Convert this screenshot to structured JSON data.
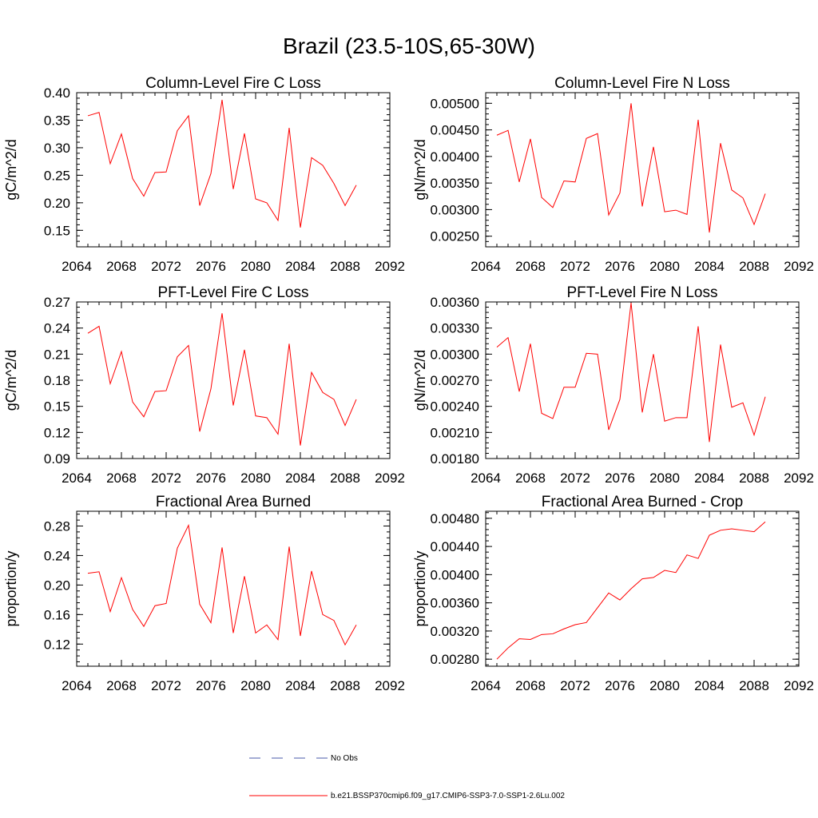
{
  "title": "Brazil (23.5-10S,65-30W)",
  "chart_data": [
    {
      "type": "line",
      "title": "Column-Level Fire C Loss",
      "ylabel": "gC/m^2/d",
      "xlim": [
        2064,
        2092
      ],
      "ylim": [
        0.12,
        0.4
      ],
      "xticks": [
        "2064",
        "2068",
        "2072",
        "2076",
        "2080",
        "2084",
        "2088",
        "2092"
      ],
      "yticks": [
        "0.15",
        "0.20",
        "0.25",
        "0.30",
        "0.35",
        "0.40"
      ],
      "ytick_values": [
        0.15,
        0.2,
        0.25,
        0.3,
        0.35,
        0.4
      ],
      "x": [
        2065,
        2066,
        2067,
        2068,
        2069,
        2070,
        2071,
        2072,
        2073,
        2074,
        2075,
        2076,
        2077,
        2078,
        2079,
        2080,
        2081,
        2082,
        2083,
        2084,
        2085,
        2086,
        2087,
        2088,
        2089
      ],
      "series": [
        {
          "values": [
            0.358,
            0.364,
            0.271,
            0.325,
            0.244,
            0.212,
            0.255,
            0.256,
            0.331,
            0.358,
            0.195,
            0.253,
            0.387,
            0.225,
            0.326,
            0.207,
            0.2,
            0.168,
            0.336,
            0.155,
            0.282,
            0.268,
            0.235,
            0.195,
            0.232
          ]
        }
      ]
    },
    {
      "type": "line",
      "title": "Column-Level Fire N Loss",
      "ylabel": "gN/m^2/d",
      "xlim": [
        2064,
        2092
      ],
      "ylim": [
        0.0023,
        0.0052
      ],
      "xticks": [
        "2064",
        "2068",
        "2072",
        "2076",
        "2080",
        "2084",
        "2088",
        "2092"
      ],
      "yticks": [
        "0.00250",
        "0.00300",
        "0.00350",
        "0.00400",
        "0.00450",
        "0.00500"
      ],
      "ytick_values": [
        0.0025,
        0.003,
        0.0035,
        0.004,
        0.0045,
        0.005
      ],
      "x": [
        2065,
        2066,
        2067,
        2068,
        2069,
        2070,
        2071,
        2072,
        2073,
        2074,
        2075,
        2076,
        2077,
        2078,
        2079,
        2080,
        2081,
        2082,
        2083,
        2084,
        2085,
        2086,
        2087,
        2088,
        2089
      ],
      "series": [
        {
          "values": [
            0.0044,
            0.00449,
            0.00352,
            0.00433,
            0.00323,
            0.00304,
            0.00354,
            0.00352,
            0.00434,
            0.00443,
            0.0029,
            0.00331,
            0.005,
            0.00306,
            0.00418,
            0.00296,
            0.00299,
            0.00291,
            0.00469,
            0.00257,
            0.00425,
            0.00337,
            0.00322,
            0.00272,
            0.0033
          ]
        }
      ]
    },
    {
      "type": "line",
      "title": "PFT-Level Fire C Loss",
      "ylabel": "gC/m^2/d",
      "xlim": [
        2064,
        2092
      ],
      "ylim": [
        0.09,
        0.27
      ],
      "xticks": [
        "2064",
        "2068",
        "2072",
        "2076",
        "2080",
        "2084",
        "2088",
        "2092"
      ],
      "yticks": [
        "0.09",
        "0.12",
        "0.15",
        "0.18",
        "0.21",
        "0.24",
        "0.27"
      ],
      "ytick_values": [
        0.09,
        0.12,
        0.15,
        0.18,
        0.21,
        0.24,
        0.27
      ],
      "x": [
        2065,
        2066,
        2067,
        2068,
        2069,
        2070,
        2071,
        2072,
        2073,
        2074,
        2075,
        2076,
        2077,
        2078,
        2079,
        2080,
        2081,
        2082,
        2083,
        2084,
        2085,
        2086,
        2087,
        2088,
        2089
      ],
      "series": [
        {
          "values": [
            0.234,
            0.242,
            0.176,
            0.213,
            0.155,
            0.138,
            0.167,
            0.168,
            0.207,
            0.22,
            0.121,
            0.17,
            0.257,
            0.151,
            0.215,
            0.139,
            0.137,
            0.118,
            0.222,
            0.105,
            0.189,
            0.166,
            0.158,
            0.128,
            0.158
          ]
        }
      ]
    },
    {
      "type": "line",
      "title": "PFT-Level Fire N Loss",
      "ylabel": "gN/m^2/d",
      "xlim": [
        2064,
        2092
      ],
      "ylim": [
        0.0018,
        0.0036
      ],
      "xticks": [
        "2064",
        "2068",
        "2072",
        "2076",
        "2080",
        "2084",
        "2088",
        "2092"
      ],
      "yticks": [
        "0.00180",
        "0.00210",
        "0.00240",
        "0.00270",
        "0.00300",
        "0.00330",
        "0.00360"
      ],
      "ytick_values": [
        0.0018,
        0.0021,
        0.0024,
        0.0027,
        0.003,
        0.0033,
        0.0036
      ],
      "x": [
        2065,
        2066,
        2067,
        2068,
        2069,
        2070,
        2071,
        2072,
        2073,
        2074,
        2075,
        2076,
        2077,
        2078,
        2079,
        2080,
        2081,
        2082,
        2083,
        2084,
        2085,
        2086,
        2087,
        2088,
        2089
      ],
      "series": [
        {
          "values": [
            0.00308,
            0.00319,
            0.00257,
            0.00312,
            0.00232,
            0.00226,
            0.00262,
            0.00262,
            0.00301,
            0.003,
            0.00213,
            0.00248,
            0.00359,
            0.00233,
            0.003,
            0.00223,
            0.00227,
            0.00227,
            0.00332,
            0.00199,
            0.00311,
            0.00239,
            0.00244,
            0.00207,
            0.00251
          ]
        }
      ]
    },
    {
      "type": "line",
      "title": "Fractional Area Burned",
      "ylabel": "proportion/y",
      "xlim": [
        2064,
        2092
      ],
      "ylim": [
        0.09,
        0.3
      ],
      "xticks": [
        "2064",
        "2068",
        "2072",
        "2076",
        "2080",
        "2084",
        "2088",
        "2092"
      ],
      "yticks": [
        "0.12",
        "0.16",
        "0.20",
        "0.24",
        "0.28"
      ],
      "ytick_values": [
        0.12,
        0.16,
        0.2,
        0.24,
        0.28
      ],
      "x": [
        2065,
        2066,
        2067,
        2068,
        2069,
        2070,
        2071,
        2072,
        2073,
        2074,
        2075,
        2076,
        2077,
        2078,
        2079,
        2080,
        2081,
        2082,
        2083,
        2084,
        2085,
        2086,
        2087,
        2088,
        2089
      ],
      "series": [
        {
          "values": [
            0.216,
            0.218,
            0.164,
            0.21,
            0.167,
            0.144,
            0.172,
            0.175,
            0.25,
            0.281,
            0.174,
            0.149,
            0.251,
            0.135,
            0.212,
            0.135,
            0.146,
            0.126,
            0.252,
            0.131,
            0.219,
            0.16,
            0.152,
            0.119,
            0.146
          ]
        }
      ]
    },
    {
      "type": "line",
      "title": "Fractional Area Burned - Crop",
      "ylabel": "proportion/y",
      "xlim": [
        2064,
        2092
      ],
      "ylim": [
        0.0027,
        0.0049
      ],
      "xticks": [
        "2064",
        "2068",
        "2072",
        "2076",
        "2080",
        "2084",
        "2088",
        "2092"
      ],
      "yticks": [
        "0.00280",
        "0.00320",
        "0.00360",
        "0.00400",
        "0.00440",
        "0.00480"
      ],
      "ytick_values": [
        0.0028,
        0.0032,
        0.0036,
        0.004,
        0.0044,
        0.0048
      ],
      "x": [
        2065,
        2066,
        2067,
        2068,
        2069,
        2070,
        2071,
        2072,
        2073,
        2074,
        2075,
        2076,
        2077,
        2078,
        2079,
        2080,
        2081,
        2082,
        2083,
        2084,
        2085,
        2086,
        2087,
        2088,
        2089
      ],
      "series": [
        {
          "values": [
            0.0028,
            0.00296,
            0.00309,
            0.00308,
            0.00315,
            0.00316,
            0.00323,
            0.00329,
            0.00332,
            0.00353,
            0.00374,
            0.00364,
            0.0038,
            0.00394,
            0.00396,
            0.00406,
            0.00403,
            0.00428,
            0.00423,
            0.00456,
            0.00463,
            0.00465,
            0.00463,
            0.00461,
            0.00475
          ]
        }
      ]
    }
  ],
  "legend": {
    "items": [
      {
        "label": "No Obs",
        "color": "#4a5aa8",
        "style": "dashed"
      },
      {
        "label": "b.e21.BSSP370cmip6.f09_g17.CMIP6-SSP3-7.0-SSP1-2.6Lu.002",
        "color": "#ff0000",
        "style": "solid"
      }
    ]
  },
  "colors": {
    "series": "#ff0000",
    "axes": "#000000"
  }
}
